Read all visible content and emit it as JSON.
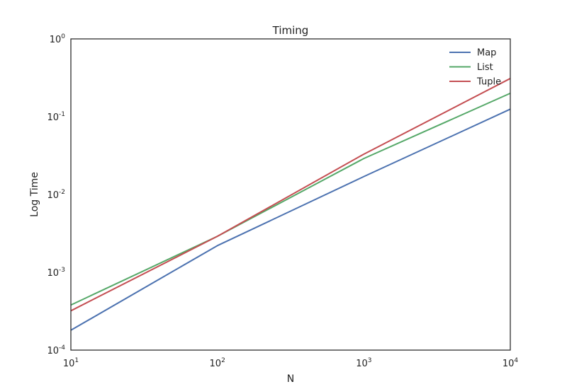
{
  "chart_data": {
    "type": "line",
    "title": "Timing",
    "xlabel": "N",
    "ylabel": "Log Time",
    "xscale": "log",
    "yscale": "log",
    "xlim": [
      10,
      10000
    ],
    "ylim": [
      0.0001,
      1
    ],
    "x": [
      10,
      100,
      1000,
      10000
    ],
    "x_ticks": [
      {
        "value": 10,
        "base": "10",
        "exp": "1"
      },
      {
        "value": 100,
        "base": "10",
        "exp": "2"
      },
      {
        "value": 1000,
        "base": "10",
        "exp": "3"
      },
      {
        "value": 10000,
        "base": "10",
        "exp": "4"
      }
    ],
    "y_ticks": [
      {
        "value": 0.0001,
        "base": "10",
        "exp": "-4"
      },
      {
        "value": 0.001,
        "base": "10",
        "exp": "-3"
      },
      {
        "value": 0.01,
        "base": "10",
        "exp": "-2"
      },
      {
        "value": 0.1,
        "base": "10",
        "exp": "-1"
      },
      {
        "value": 1,
        "base": "10",
        "exp": "0"
      }
    ],
    "series": [
      {
        "name": "Map",
        "color": "#4c72b0",
        "values": [
          0.00018,
          0.0022,
          0.017,
          0.125
        ]
      },
      {
        "name": "List",
        "color": "#55a868",
        "values": [
          0.00038,
          0.0029,
          0.029,
          0.2
        ]
      },
      {
        "name": "Tuple",
        "color": "#c44e52",
        "values": [
          0.00032,
          0.0029,
          0.033,
          0.31
        ]
      }
    ],
    "grid": false,
    "legend_position": "top-right"
  }
}
